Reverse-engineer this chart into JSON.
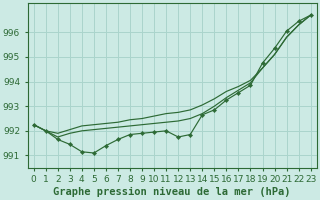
{
  "bg_color": "#cceae4",
  "grid_color": "#aad4cc",
  "line_color": "#2d6a35",
  "marker_color": "#2d6a35",
  "xlabel": "Graphe pression niveau de la mer (hPa)",
  "xlabel_fontsize": 7.5,
  "tick_fontsize": 6.5,
  "xlim": [
    -0.5,
    23.5
  ],
  "ylim": [
    990.5,
    997.2
  ],
  "yticks": [
    991,
    992,
    993,
    994,
    995,
    996
  ],
  "xticks": [
    0,
    1,
    2,
    3,
    4,
    5,
    6,
    7,
    8,
    9,
    10,
    11,
    12,
    13,
    14,
    15,
    16,
    17,
    18,
    19,
    20,
    21,
    22,
    23
  ],
  "series_markers": [
    992.25,
    992.0,
    991.65,
    991.45,
    991.15,
    991.1,
    991.4,
    991.65,
    991.85,
    991.9,
    991.95,
    992.0,
    991.75,
    991.85,
    992.65,
    992.85,
    993.25,
    993.55,
    993.85,
    994.75,
    995.35,
    996.05,
    996.45,
    996.7
  ],
  "series_line1": [
    992.25,
    992.0,
    991.9,
    992.05,
    992.2,
    992.25,
    992.3,
    992.35,
    992.45,
    992.5,
    992.6,
    992.7,
    992.75,
    992.85,
    993.05,
    993.3,
    993.6,
    993.8,
    994.05,
    994.55,
    995.1,
    995.8,
    996.3,
    996.7
  ],
  "series_line2": [
    992.25,
    992.0,
    991.75,
    991.9,
    992.0,
    992.05,
    992.1,
    992.15,
    992.2,
    992.25,
    992.3,
    992.35,
    992.4,
    992.5,
    992.7,
    993.0,
    993.35,
    993.65,
    993.95,
    994.55,
    995.1,
    995.8,
    996.3,
    996.7
  ]
}
